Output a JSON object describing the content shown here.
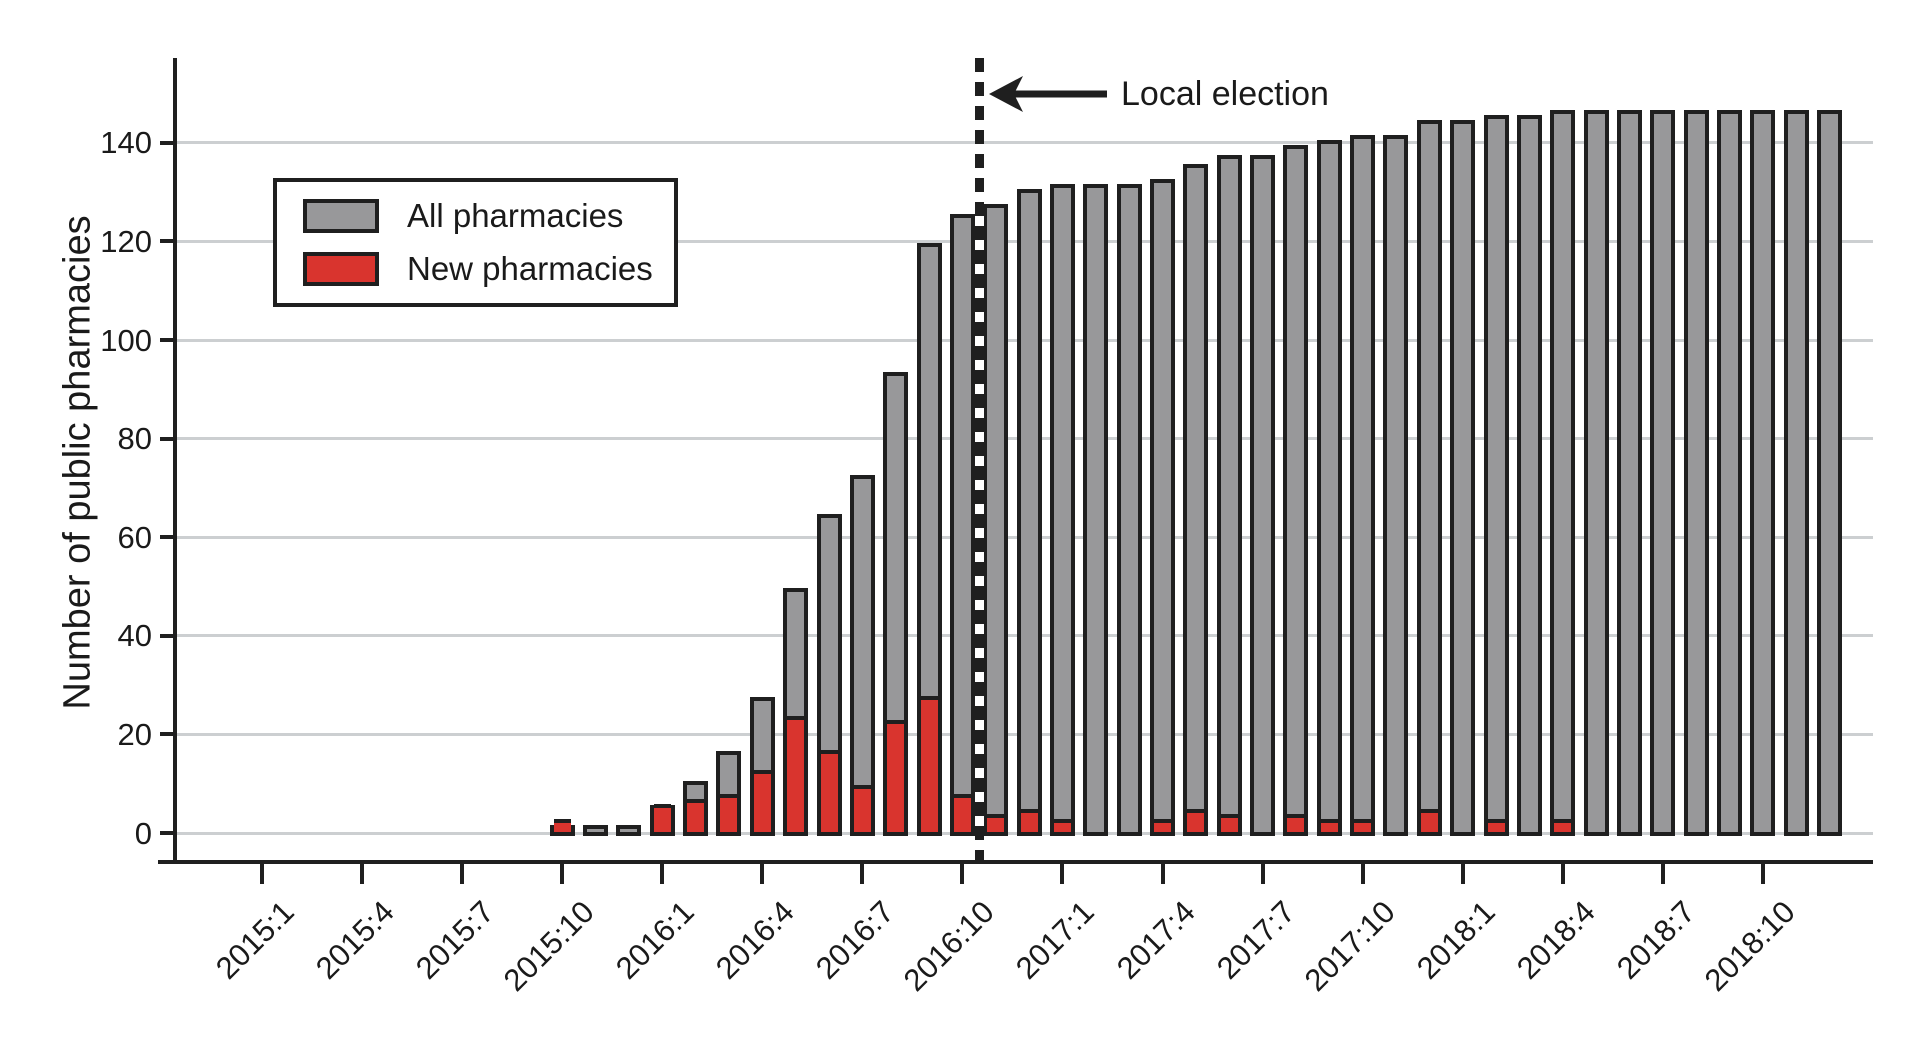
{
  "chart_data": {
    "type": "bar",
    "bar_mode": "overlay-cumulative-with-monthly-new",
    "title": "",
    "xlabel": "",
    "ylabel": "Number of public pharmacies",
    "grid": true,
    "legend_position": "top-left-inside",
    "y_ticks": [
      0,
      20,
      40,
      60,
      80,
      100,
      120,
      140
    ],
    "ylim": [
      0,
      156
    ],
    "categories": [
      "2015:1",
      "2015:2",
      "2015:3",
      "2015:4",
      "2015:5",
      "2015:6",
      "2015:7",
      "2015:8",
      "2015:9",
      "2015:10",
      "2015:11",
      "2015:12",
      "2016:1",
      "2016:2",
      "2016:3",
      "2016:4",
      "2016:5",
      "2016:6",
      "2016:7",
      "2016:8",
      "2016:9",
      "2016:10",
      "2016:11",
      "2016:12",
      "2017:1",
      "2017:2",
      "2017:3",
      "2017:4",
      "2017:5",
      "2017:6",
      "2017:7",
      "2017:8",
      "2017:9",
      "2017:10",
      "2017:11",
      "2017:12",
      "2018:1",
      "2018:2",
      "2018:3",
      "2018:4",
      "2018:5",
      "2018:6",
      "2018:7",
      "2018:8",
      "2018:9",
      "2018:10",
      "2018:11",
      "2018:12"
    ],
    "x_tick_labels": [
      "2015:1",
      "2015:4",
      "2015:7",
      "2015:10",
      "2016:1",
      "2016:4",
      "2016:7",
      "2016:10",
      "2017:1",
      "2017:4",
      "2017:7",
      "2017:10",
      "2018:1",
      "2018:4",
      "2018:7",
      "2018:10"
    ],
    "series": [
      {
        "name": "All pharmacies",
        "color": "#98989a",
        "values": [
          0,
          0,
          0,
          0,
          0,
          0,
          0,
          0,
          0,
          1,
          1,
          1,
          5,
          10,
          16,
          27,
          49,
          64,
          72,
          93,
          119,
          125,
          127,
          130,
          131,
          131,
          131,
          132,
          135,
          137,
          137,
          139,
          140,
          141,
          141,
          144,
          144,
          145,
          145,
          146,
          146,
          146,
          146,
          146,
          146,
          146,
          146,
          146
        ]
      },
      {
        "name": "New pharmacies",
        "color": "#d9342e",
        "values": [
          0,
          0,
          0,
          0,
          0,
          0,
          0,
          0,
          0,
          1,
          0,
          0,
          4,
          5,
          6,
          11,
          22,
          15,
          8,
          21,
          26,
          6,
          2,
          3,
          1,
          0,
          0,
          1,
          3,
          2,
          0,
          2,
          1,
          1,
          0,
          3,
          0,
          1,
          0,
          1,
          0,
          0,
          0,
          0,
          0,
          0,
          0,
          0
        ]
      }
    ],
    "annotation": {
      "label": "Local election",
      "x_between": [
        "2016:10",
        "2016:11"
      ],
      "style": "dashed-vertical-line-with-left-arrow"
    }
  },
  "colors": {
    "background": "#ffffff",
    "bar_fill": "#98989a",
    "new_fill": "#d9342e",
    "bar_outline": "#1f1f1f",
    "gridline": "#cccfd1",
    "axis": "#1f1f1f",
    "text": "#1a1a1a"
  }
}
